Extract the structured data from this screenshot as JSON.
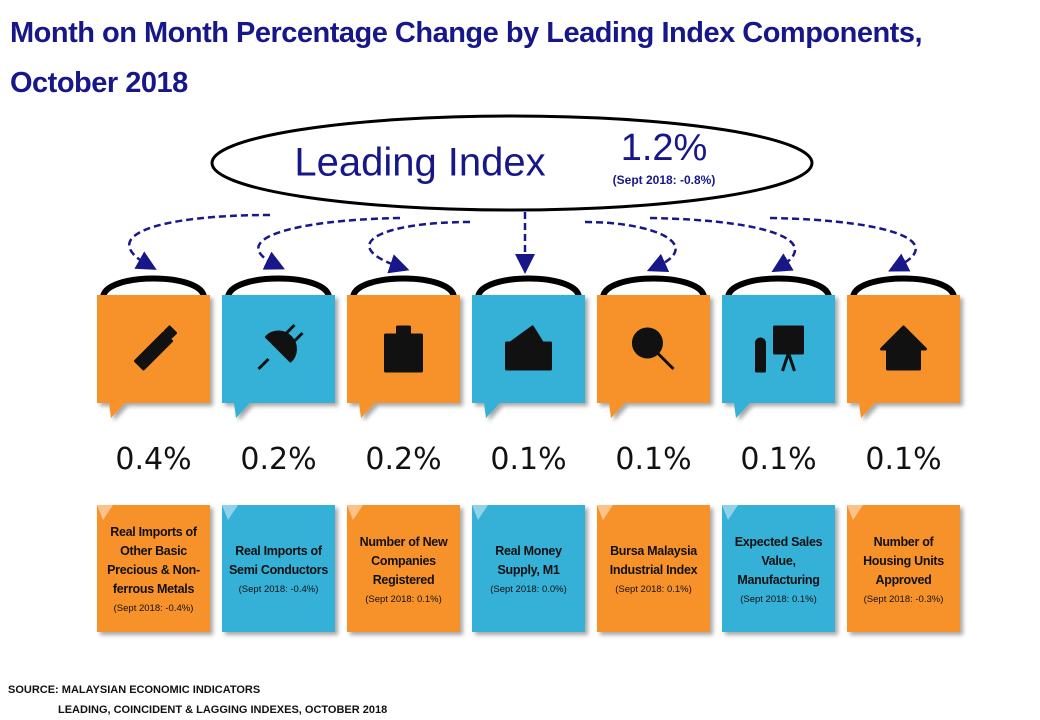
{
  "header": {
    "title": "Month on Month Percentage Change by Leading Index Components, October 2018"
  },
  "leading_index": {
    "label": "Leading Index",
    "value": "1.2%",
    "previous": "(Sept 2018: -0.8%)"
  },
  "components": [
    {
      "value": "0.4%",
      "label": "Real Imports of Other Basic Precious & Non-ferrous Metals",
      "previous": "(Sept 2018: -0.4%)"
    },
    {
      "value": "0.2%",
      "label": "Real Imports of Semi Conductors",
      "previous": "(Sept 2018: -0.4%)"
    },
    {
      "value": "0.2%",
      "label": "Number of New Companies Registered",
      "previous": "(Sept 2018: 0.1%)"
    },
    {
      "value": "0.1%",
      "label": "Real Money Supply, M1",
      "previous": "(Sept 2018: 0.0%)"
    },
    {
      "value": "0.1%",
      "label": "Bursa Malaysia Industrial Index",
      "previous": "(Sept 2018: 0.1%)"
    },
    {
      "value": "0.1%",
      "label": "Expected Sales Value, Manufacturing",
      "previous": "(Sept 2018: 0.1%)"
    },
    {
      "value": "0.1%",
      "label": "Number of Housing Units Approved",
      "previous": "(Sept 2018: -0.3%)"
    }
  ],
  "source": {
    "line1": "SOURCE: MALAYSIAN ECONOMIC INDICATORS",
    "line2": "LEADING, COINCIDENT & LAGGING INDEXES, OCTOBER 2018"
  }
}
